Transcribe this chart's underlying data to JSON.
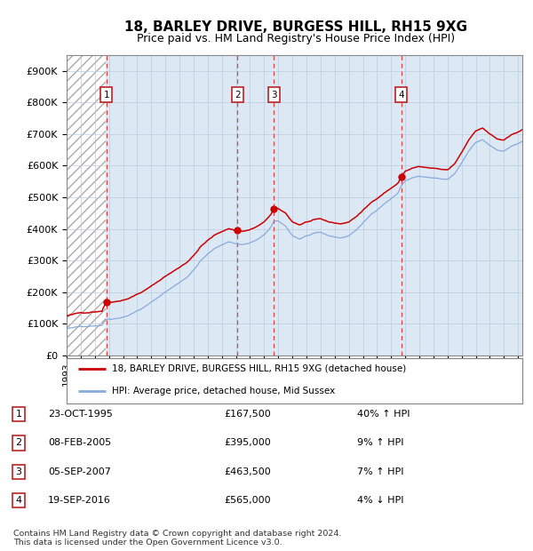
{
  "title": "18, BARLEY DRIVE, BURGESS HILL, RH15 9XG",
  "subtitle": "Price paid vs. HM Land Registry's House Price Index (HPI)",
  "ylim": [
    0,
    950000
  ],
  "yticks": [
    0,
    100000,
    200000,
    300000,
    400000,
    500000,
    600000,
    700000,
    800000,
    900000
  ],
  "ytick_labels": [
    "£0",
    "£100K",
    "£200K",
    "£300K",
    "£400K",
    "£500K",
    "£600K",
    "£700K",
    "£800K",
    "£900K"
  ],
  "xlim_start": 1993.0,
  "xlim_end": 2025.3,
  "hatch_end_year": 1995.75,
  "sale_dates": [
    1995.81,
    2005.12,
    2007.68,
    2016.72
  ],
  "sale_prices": [
    167500,
    395000,
    463500,
    565000
  ],
  "sale_labels": [
    "1",
    "2",
    "3",
    "4"
  ],
  "legend_line1": "18, BARLEY DRIVE, BURGESS HILL, RH15 9XG (detached house)",
  "legend_line2": "HPI: Average price, detached house, Mid Sussex",
  "table_data": [
    [
      "1",
      "23-OCT-1995",
      "£167,500",
      "40% ↑ HPI"
    ],
    [
      "2",
      "08-FEB-2005",
      "£395,000",
      "9% ↑ HPI"
    ],
    [
      "3",
      "05-SEP-2007",
      "£463,500",
      "7% ↑ HPI"
    ],
    [
      "4",
      "19-SEP-2016",
      "£565,000",
      "4% ↓ HPI"
    ]
  ],
  "footnote": "Contains HM Land Registry data © Crown copyright and database right 2024.\nThis data is licensed under the Open Government Licence v3.0.",
  "price_line_color": "#cc0000",
  "hpi_line_color": "#88aadd",
  "grid_color": "#bbccdd",
  "background_color": "#dde8f5",
  "sale_dot_color": "#cc0000",
  "vline_color": "#dd4444",
  "title_fontsize": 11,
  "subtitle_fontsize": 9
}
